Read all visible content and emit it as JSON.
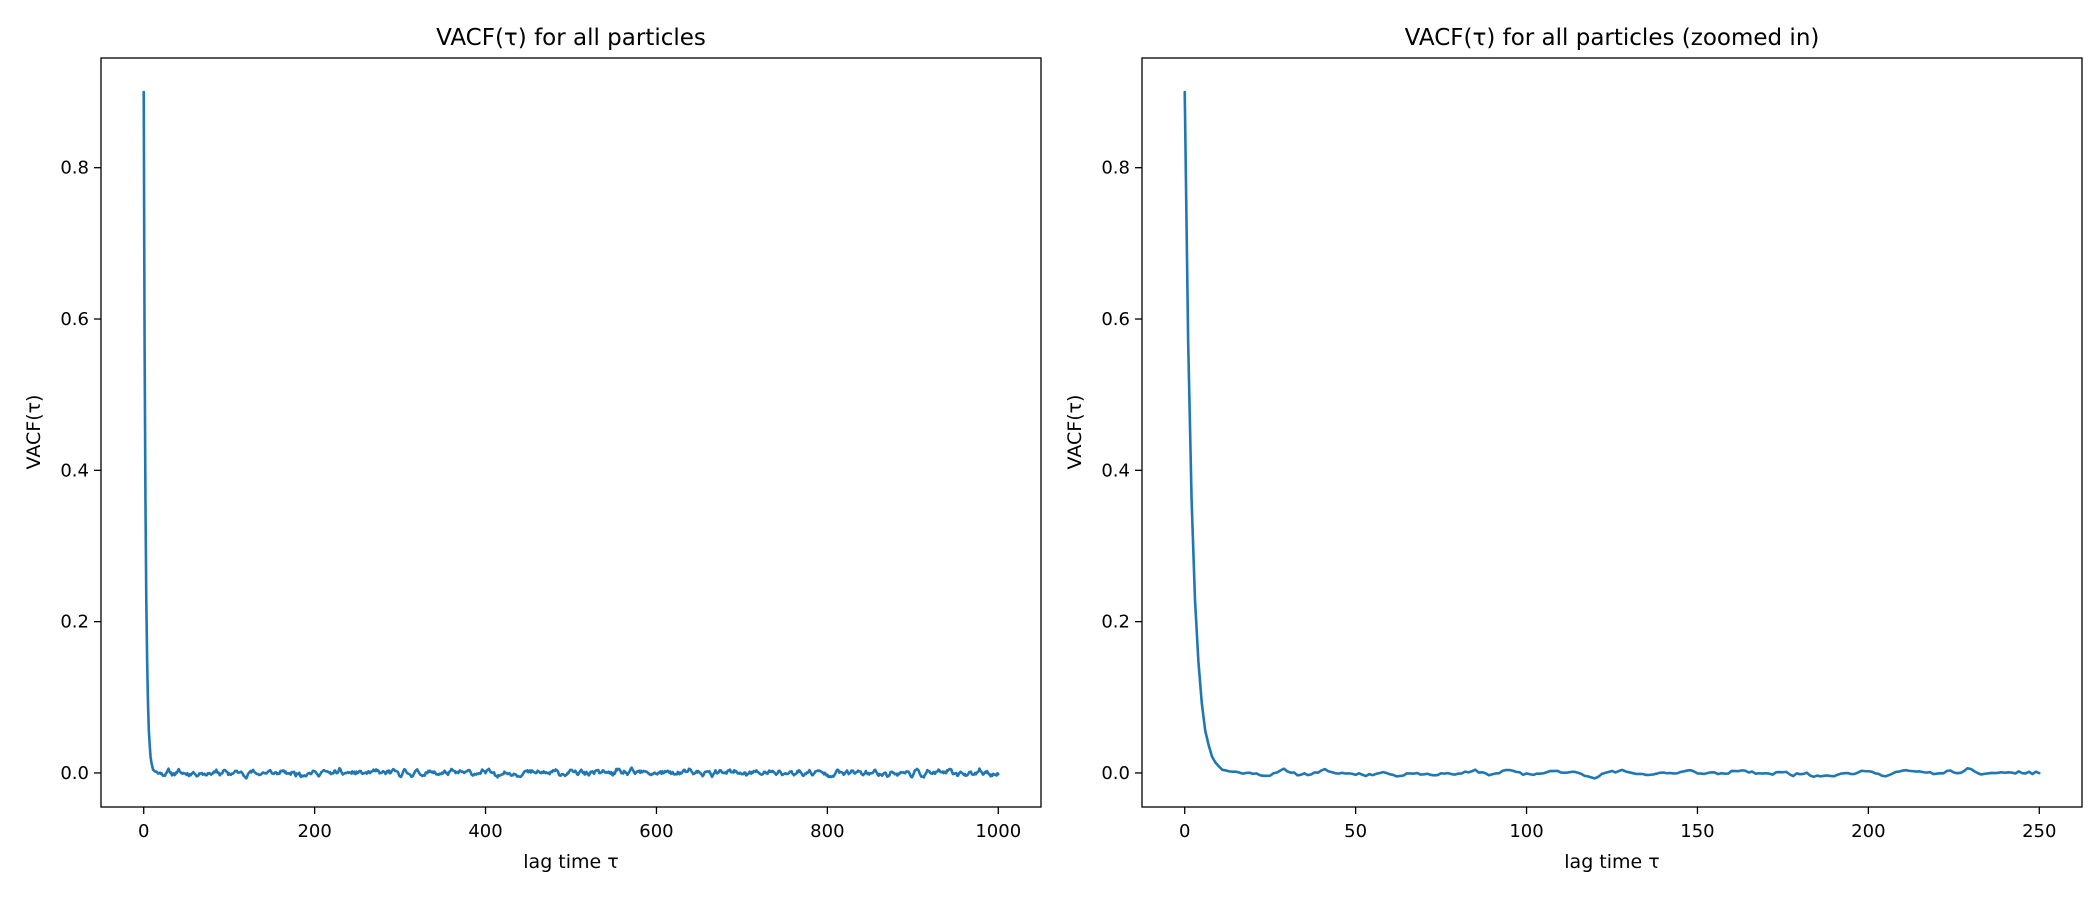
{
  "colors": {
    "series": "#1f77b4",
    "axes": "#000000",
    "background": "#ffffff"
  },
  "chart_data": [
    {
      "type": "line",
      "title": "VACF(τ) for all particles",
      "xlabel": "lag time τ",
      "ylabel": "VACF(τ)",
      "xlim": [
        -50,
        1050
      ],
      "ylim": [
        -0.045,
        0.945
      ],
      "xticks": [
        0,
        200,
        400,
        600,
        800,
        1000
      ],
      "xtick_labels": [
        "0",
        "200",
        "400",
        "600",
        "800",
        "1000"
      ],
      "yticks": [
        0.0,
        0.2,
        0.4,
        0.6,
        0.8
      ],
      "ytick_labels": [
        "0.0",
        "0.2",
        "0.4",
        "0.6",
        "0.8"
      ],
      "grid": false,
      "series": [
        {
          "x_start": 0,
          "x_end": 1000,
          "initial_value": 0.9,
          "decay_time": 2.2,
          "noise_amplitude": 0.004,
          "noise_seed": 11
        }
      ]
    },
    {
      "type": "line",
      "title": "VACF(τ) for all particles (zoomed in)",
      "xlabel": "lag time τ",
      "ylabel": "VACF(τ)",
      "xlim": [
        -12.5,
        262.5
      ],
      "ylim": [
        -0.045,
        0.945
      ],
      "xticks": [
        0,
        50,
        100,
        150,
        200,
        250
      ],
      "xtick_labels": [
        "0",
        "50",
        "100",
        "150",
        "200",
        "250"
      ],
      "yticks": [
        0.0,
        0.2,
        0.4,
        0.6,
        0.8
      ],
      "ytick_labels": [
        "0.0",
        "0.2",
        "0.4",
        "0.6",
        "0.8"
      ],
      "grid": false,
      "series": [
        {
          "x_start": 0,
          "x_end": 250,
          "initial_value": 0.9,
          "decay_time": 2.2,
          "noise_amplitude": 0.004,
          "noise_seed": 11
        }
      ]
    }
  ]
}
